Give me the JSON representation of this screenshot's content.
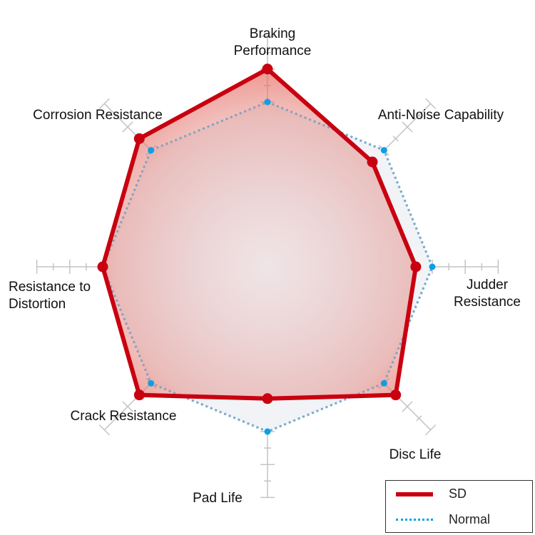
{
  "chart_data": {
    "type": "radar",
    "axes": [
      "Braking Performance",
      "Anti-Noise Capability",
      "Judder Resistance",
      "Disc Life",
      "Pad Life",
      "Crack Resistance",
      "Resistance to Distortion",
      "Corrosion Resistance"
    ],
    "axis_label_lines": [
      [
        "Braking",
        "Performance"
      ],
      [
        "Anti-Noise Capability"
      ],
      [
        "Judder",
        "Resistance"
      ],
      [
        "Disc Life"
      ],
      [
        "Pad Life"
      ],
      [
        "Crack Resistance"
      ],
      [
        "Resistance to",
        "Distortion"
      ],
      [
        "Corrosion Resistance"
      ]
    ],
    "range": [
      0,
      7
    ],
    "major_tick_step": 1,
    "minor_tick_step": 0.5,
    "tick_labels_shown": false,
    "series": [
      {
        "name": "SD",
        "values": [
          6,
          4.5,
          4.5,
          5.5,
          4,
          5.5,
          5,
          5.5
        ],
        "color": "#c8000f",
        "style": "solid"
      },
      {
        "name": "Normal",
        "values": [
          5,
          5,
          5,
          5,
          5,
          5,
          5,
          5
        ],
        "color": "#0aa0e6",
        "style": "dotted"
      }
    ],
    "legend_position": "bottom-right",
    "grid": false
  },
  "legend": {
    "items": [
      "SD",
      "Normal"
    ]
  }
}
